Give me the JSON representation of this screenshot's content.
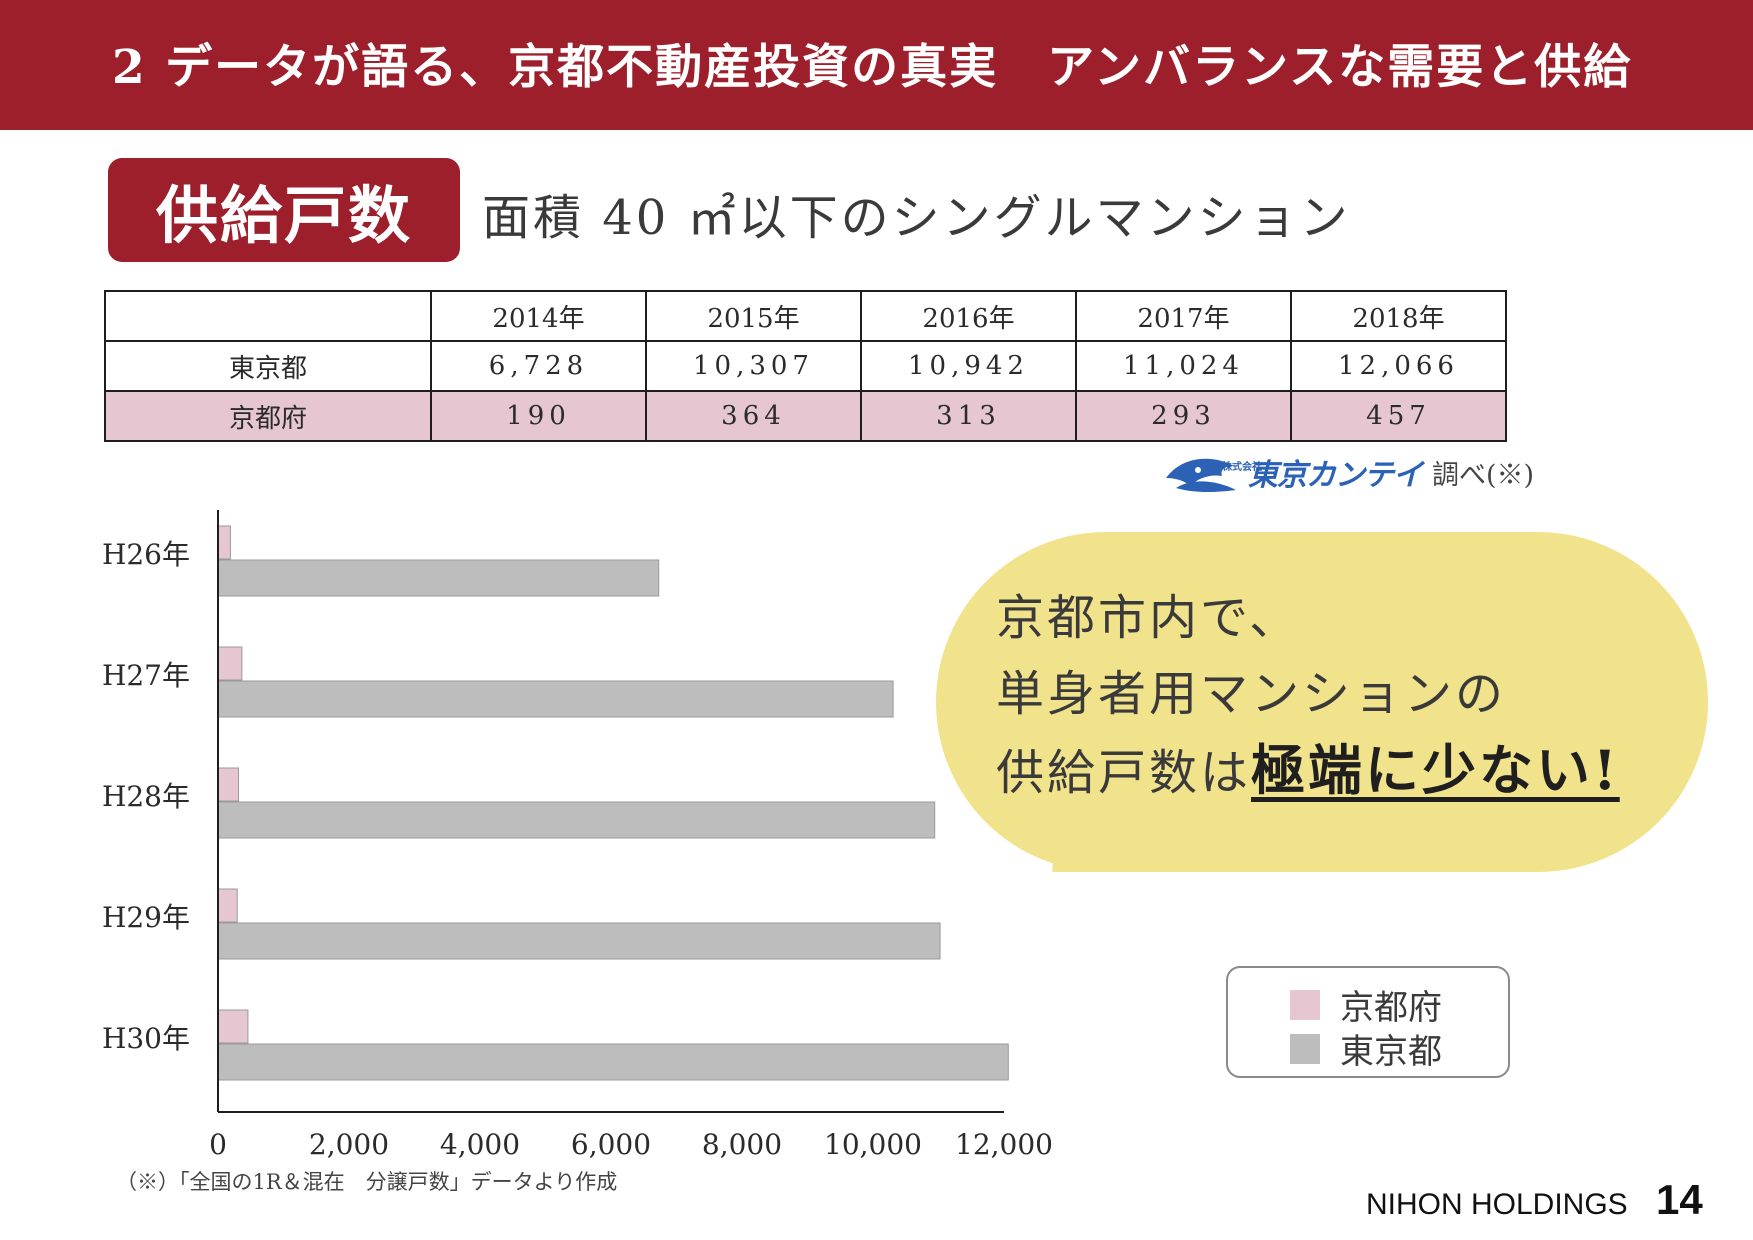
{
  "header": {
    "title": "2  データが語る、京都不動産投資の真実　アンバランスな需要と供給"
  },
  "section": {
    "badge": "供給戸数",
    "subtitle": "面積 40 ㎡以下のシングルマンション"
  },
  "table": {
    "years": [
      "2014年",
      "2015年",
      "2016年",
      "2017年",
      "2018年"
    ],
    "rows": [
      {
        "label": "東京都",
        "values": [
          "6,728",
          "10,307",
          "10,942",
          "11,024",
          "12,066"
        ]
      },
      {
        "label": "京都府",
        "values": [
          "190",
          "364",
          "313",
          "293",
          "457"
        ]
      }
    ]
  },
  "source": {
    "logo_text": "東京カンテイ",
    "logo_prefix": "株式会社",
    "note": "調べ(※)"
  },
  "chart_data": {
    "type": "bar",
    "orientation": "horizontal",
    "categories": [
      "H26年",
      "H27年",
      "H28年",
      "H29年",
      "H30年"
    ],
    "series": [
      {
        "name": "京都府",
        "color": "#e5c6d1",
        "values": [
          190,
          364,
          313,
          293,
          457
        ]
      },
      {
        "name": "東京都",
        "color": "#bdbdbd",
        "values": [
          6728,
          10307,
          10942,
          11024,
          12066
        ]
      }
    ],
    "xlim": [
      0,
      12000
    ],
    "xticks": [
      0,
      2000,
      4000,
      6000,
      8000,
      10000,
      12000
    ],
    "xtick_labels": [
      "0",
      "2,000",
      "4,000",
      "6,000",
      "8,000",
      "10,000",
      "12,000"
    ],
    "grid": false,
    "legend_position": "right"
  },
  "footnote": "（※）「全国の1R＆混在　分譲戸数」データより作成",
  "callout": {
    "line1": "京都市内で、",
    "line2": "単身者用マンションの",
    "line3_prefix": "供給戸数は",
    "line3_emphasis": "極端に少ない!",
    "color": "#f1e28c"
  },
  "legend": {
    "items": [
      {
        "label": "京都府",
        "color": "#e5c6d1"
      },
      {
        "label": "東京都",
        "color": "#bdbdbd"
      }
    ]
  },
  "footer": {
    "brand": "NIHON HOLDINGS",
    "page": "14"
  }
}
